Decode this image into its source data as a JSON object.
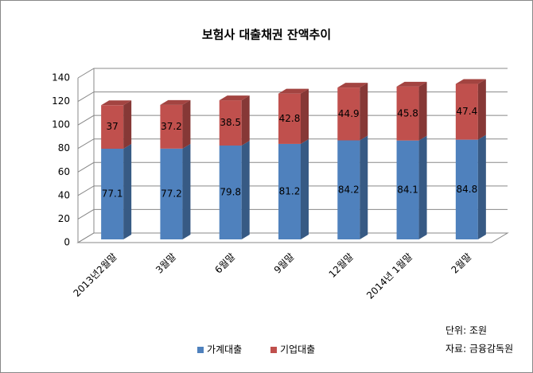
{
  "chart_data": {
    "type": "bar3d_stacked",
    "title": "보험사 대출채권 잔액추이",
    "categories": [
      "2013년2월말",
      "3월말",
      "6월말",
      "9월말",
      "12월말",
      "2014년 1월말",
      "2월말"
    ],
    "series": [
      {
        "name": "가계대출",
        "color": "#4f81bd",
        "values": [
          77.1,
          77.2,
          79.8,
          81.2,
          84.2,
          84.1,
          84.8
        ]
      },
      {
        "name": "기업대출",
        "color": "#c0504d",
        "values": [
          37,
          37.2,
          38.5,
          42.8,
          44.9,
          45.8,
          47.4
        ]
      }
    ],
    "ylim": [
      0,
      140
    ],
    "yticks": [
      0,
      20,
      40,
      60,
      80,
      100,
      120,
      140
    ],
    "grid": true,
    "legend": "bottom",
    "annotations": [
      "단위: 조원",
      "자료: 금융감독원"
    ]
  }
}
